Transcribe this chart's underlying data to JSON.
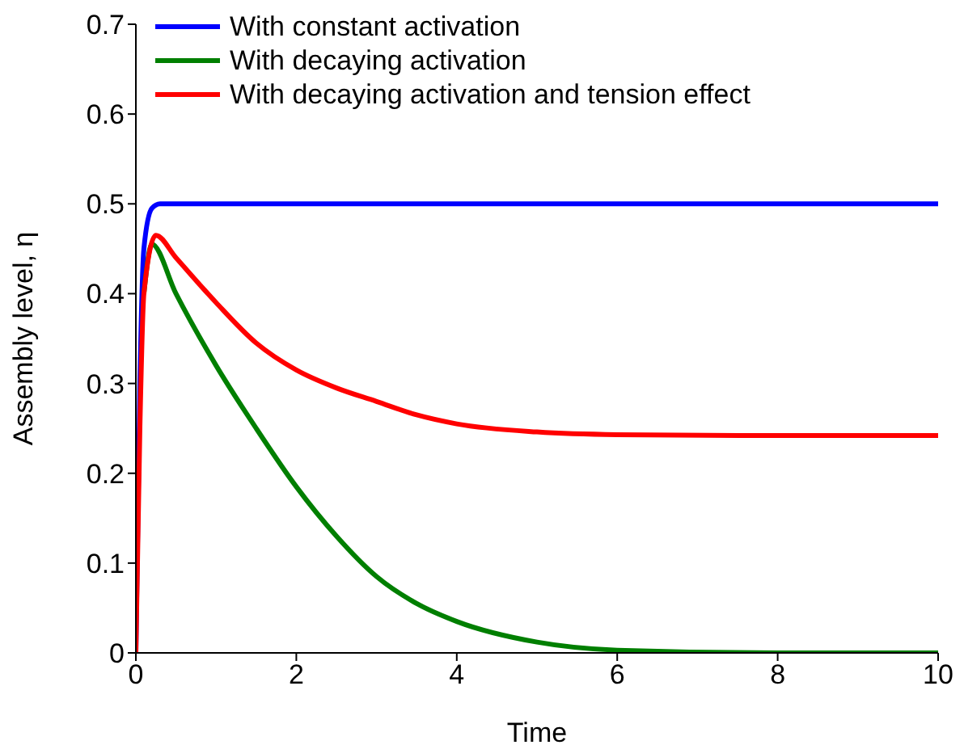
{
  "chart_data": {
    "type": "line",
    "xlabel": "Time",
    "ylabel": "Assembly level, η",
    "xlim": [
      0,
      10
    ],
    "ylim": [
      0,
      0.7
    ],
    "xticks": [
      0,
      2,
      4,
      6,
      8,
      10
    ],
    "yticks": [
      0,
      0.1,
      0.2,
      0.3,
      0.4,
      0.5,
      0.6,
      0.7
    ],
    "legend": "top left",
    "grid": false,
    "marker": "none",
    "line_style": "solid",
    "series": [
      {
        "name": "With constant activation",
        "color": "#0000ff",
        "x": [
          0,
          0.05,
          0.1,
          0.2,
          0.3,
          1,
          2,
          4,
          6,
          8,
          10
        ],
        "values": [
          0,
          0.3,
          0.45,
          0.495,
          0.5,
          0.5,
          0.5,
          0.5,
          0.5,
          0.5,
          0.5
        ]
      },
      {
        "name": "With decaying activation",
        "color": "#007f00",
        "x": [
          0.1,
          0.2,
          0.5,
          1,
          1.5,
          2,
          2.5,
          3,
          3.5,
          4,
          5,
          6,
          8,
          10
        ],
        "values": [
          0.4,
          0.455,
          0.4,
          0.32,
          0.25,
          0.185,
          0.13,
          0.085,
          0.055,
          0.035,
          0.012,
          0.003,
          0,
          0
        ]
      },
      {
        "name": "With decaying activation and tension effect",
        "color": "#ff0000",
        "x": [
          0,
          0.05,
          0.1,
          0.25,
          0.5,
          1,
          1.5,
          2,
          2.5,
          3,
          3.5,
          4,
          5,
          6,
          8,
          10
        ],
        "values": [
          0,
          0.25,
          0.4,
          0.465,
          0.44,
          0.39,
          0.345,
          0.315,
          0.295,
          0.28,
          0.265,
          0.255,
          0.246,
          0.243,
          0.242,
          0.242
        ]
      }
    ]
  }
}
